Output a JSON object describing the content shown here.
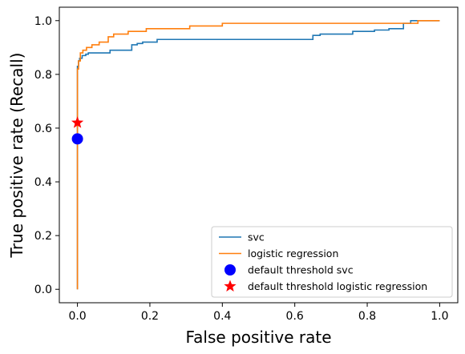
{
  "chart_data": {
    "type": "line",
    "title": "",
    "xlabel": "False positive rate",
    "ylabel": "True positive rate (Recall)",
    "xlim": [
      -0.05,
      1.05
    ],
    "ylim": [
      -0.05,
      1.05
    ],
    "xticks": [
      0.0,
      0.2,
      0.4,
      0.6,
      0.8,
      1.0
    ],
    "yticks": [
      0.0,
      0.2,
      0.4,
      0.6,
      0.8,
      1.0
    ],
    "xtick_labels": [
      "0.0",
      "0.2",
      "0.4",
      "0.6",
      "0.8",
      "1.0"
    ],
    "ytick_labels": [
      "0.0",
      "0.2",
      "0.4",
      "0.6",
      "0.8",
      "1.0"
    ],
    "grid": false,
    "legend_position": "lower-right",
    "series": [
      {
        "name": "svc",
        "color": "#1f77b4",
        "x": [
          0.0,
          0.0,
          0.0,
          0.0,
          0.003,
          0.003,
          0.006,
          0.006,
          0.013,
          0.013,
          0.023,
          0.023,
          0.03,
          0.03,
          0.09,
          0.09,
          0.15,
          0.15,
          0.165,
          0.165,
          0.18,
          0.18,
          0.22,
          0.22,
          0.65,
          0.65,
          0.67,
          0.67,
          0.76,
          0.76,
          0.82,
          0.82,
          0.86,
          0.86,
          0.9,
          0.9,
          0.92,
          0.92,
          1.0
        ],
        "y": [
          0.0,
          0.56,
          0.8,
          0.83,
          0.83,
          0.85,
          0.85,
          0.86,
          0.86,
          0.87,
          0.87,
          0.875,
          0.875,
          0.88,
          0.88,
          0.89,
          0.89,
          0.91,
          0.91,
          0.915,
          0.915,
          0.92,
          0.92,
          0.93,
          0.93,
          0.945,
          0.945,
          0.95,
          0.95,
          0.96,
          0.96,
          0.965,
          0.965,
          0.97,
          0.97,
          0.99,
          0.99,
          1.0,
          1.0
        ]
      },
      {
        "name": "logistic regression",
        "color": "#ff7f0e",
        "x": [
          0.0,
          0.0,
          0.0,
          0.003,
          0.003,
          0.008,
          0.008,
          0.015,
          0.015,
          0.025,
          0.025,
          0.04,
          0.04,
          0.06,
          0.06,
          0.085,
          0.085,
          0.1,
          0.1,
          0.14,
          0.14,
          0.19,
          0.19,
          0.31,
          0.31,
          0.4,
          0.4,
          0.94,
          0.94,
          1.0
        ],
        "y": [
          0.0,
          0.62,
          0.82,
          0.82,
          0.85,
          0.85,
          0.88,
          0.88,
          0.89,
          0.89,
          0.9,
          0.9,
          0.91,
          0.91,
          0.92,
          0.92,
          0.94,
          0.94,
          0.95,
          0.95,
          0.96,
          0.96,
          0.97,
          0.97,
          0.98,
          0.98,
          0.99,
          0.99,
          1.0,
          1.0
        ]
      }
    ],
    "markers": [
      {
        "name": "default threshold svc",
        "x": 0.0,
        "y": 0.56,
        "shape": "circle",
        "color": "#0000ff"
      },
      {
        "name": "default threshold logistic regression",
        "x": 0.0,
        "y": 0.62,
        "shape": "star",
        "color": "#ff0000"
      }
    ]
  }
}
